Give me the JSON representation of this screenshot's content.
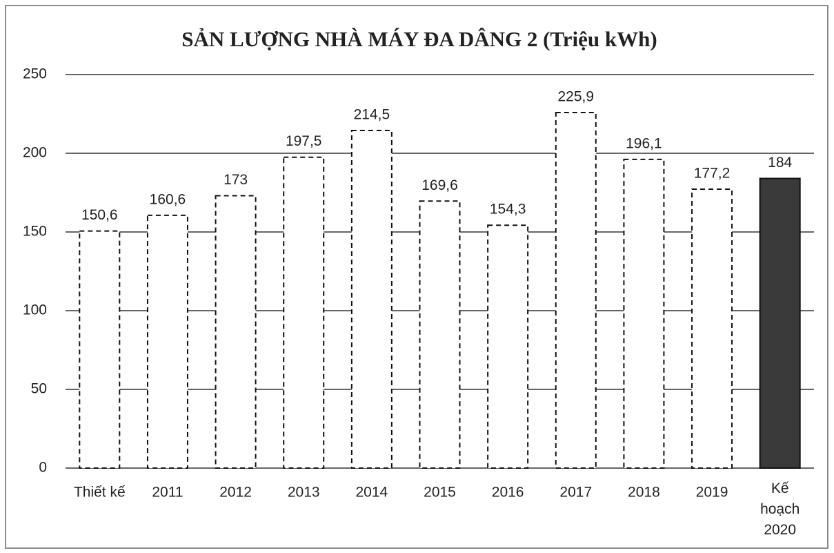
{
  "chart_data": {
    "type": "bar",
    "title": "SẢN LƯỢNG NHÀ MÁY ĐA DÂNG 2 (Triệu kWh)",
    "categories": [
      "Thiết kế",
      "2011",
      "2012",
      "2013",
      "2014",
      "2015",
      "2016",
      "2017",
      "2018",
      "2019",
      "Kế hoạch 2020"
    ],
    "values": [
      150.6,
      160.6,
      173,
      197.5,
      214.5,
      169.6,
      154.3,
      225.9,
      196.1,
      177.2,
      184
    ],
    "value_labels": [
      "150,6",
      "160,6",
      "173",
      "197,5",
      "214,5",
      "169,6",
      "154,3",
      "225,9",
      "196,1",
      "177,2",
      "184"
    ],
    "colors": [
      "none",
      "none",
      "none",
      "none",
      "none",
      "none",
      "none",
      "none",
      "none",
      "none",
      "#3a3a3a"
    ],
    "ylim": [
      0,
      250
    ],
    "yticks": [
      0,
      50,
      100,
      150,
      200,
      250
    ],
    "grid": true
  }
}
